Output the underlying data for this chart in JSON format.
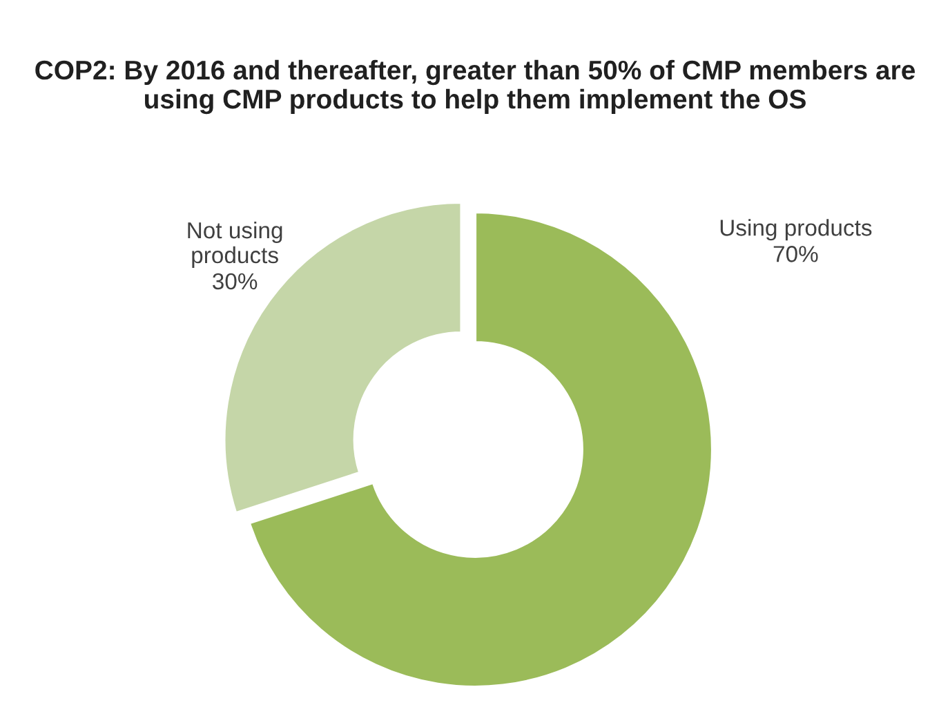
{
  "chart_data": {
    "type": "donut",
    "title": "COP2: By 2016 and thereafter, greater than 50% of CMP members are using CMP products to help them implement the OS",
    "categories": [
      "Using products",
      "Not using products"
    ],
    "values": [
      70,
      30
    ],
    "colors": [
      "#9bbb59",
      "#c5d6a8"
    ],
    "value_labels": [
      "70%",
      "30%"
    ],
    "legend": false
  }
}
